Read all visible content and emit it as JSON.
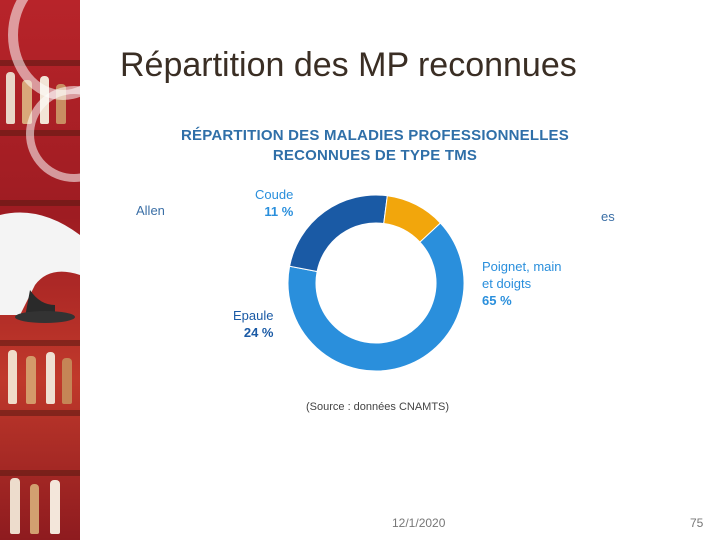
{
  "slide": {
    "title": "Répartition des MP reconnues",
    "footer_date": "12/1/2020",
    "page_number": "75"
  },
  "background_fragments": {
    "left": "Allen",
    "right": "es"
  },
  "chart_data": {
    "type": "pie",
    "style": "donut",
    "title_lines": [
      "RÉPARTITION DES MALADIES PROFESSIONNELLES",
      "RECONNUES DE TYPE TMS"
    ],
    "source": "(Source : données CNAMTS)",
    "slices": [
      {
        "name": "Poignet, main et doigts",
        "name_lines": [
          "Poignet, main",
          "et doigts"
        ],
        "percent_label": "65 %",
        "value": 65,
        "color": "#2a8fdc",
        "label_color": "#2a8fdc"
      },
      {
        "name": "Epaule",
        "name_lines": [
          "Epaule"
        ],
        "percent_label": "24 %",
        "value": 24,
        "color": "#1a5aa5",
        "label_color": "#1a5aa5"
      },
      {
        "name": "Coude",
        "name_lines": [
          "Coude"
        ],
        "percent_label": "11 %",
        "value": 11,
        "color": "#f2a60c",
        "label_color": "#2a8fdc"
      }
    ]
  }
}
